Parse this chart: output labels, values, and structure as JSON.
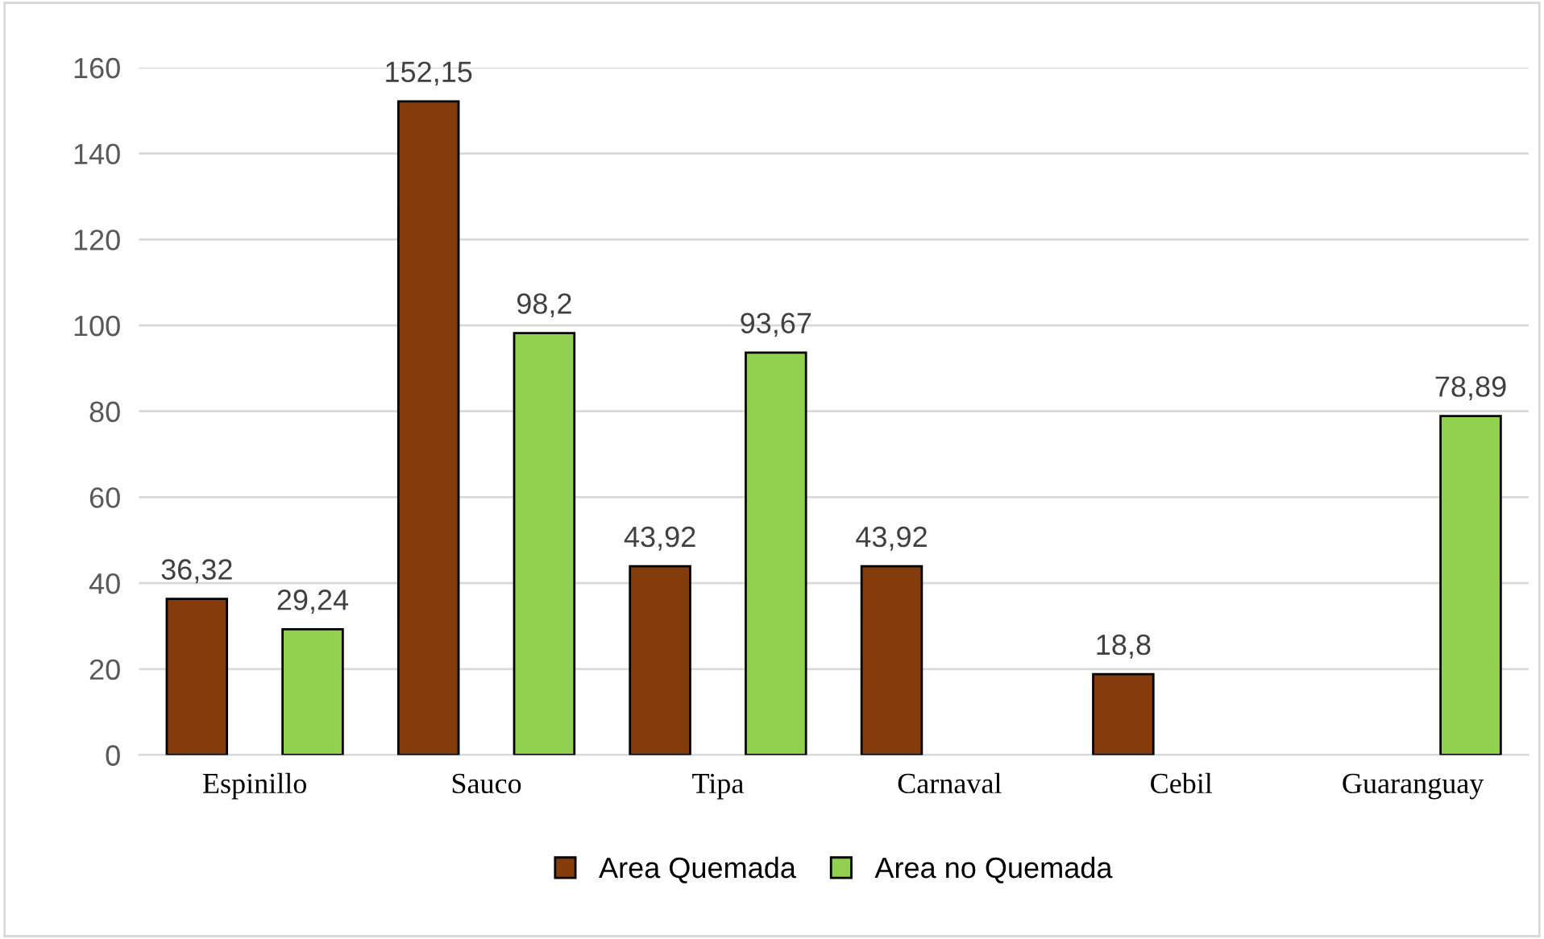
{
  "chart_data": {
    "type": "bar",
    "categories": [
      "Espinillo",
      "Sauco",
      "Tipa",
      "Carnaval",
      "Cebil",
      "Guaranguay"
    ],
    "series": [
      {
        "name": "Area Quemada",
        "color": "#843c0c",
        "values": [
          36.32,
          152.15,
          43.92,
          43.92,
          18.8,
          null
        ],
        "value_labels": [
          "36,32",
          "152,15",
          "43,92",
          "43,92",
          "18,8",
          null
        ]
      },
      {
        "name": "Area no Quemada",
        "color": "#92d050",
        "values": [
          29.24,
          98.2,
          93.67,
          null,
          null,
          78.89
        ],
        "value_labels": [
          "29,24",
          "98,2",
          "93,67",
          null,
          null,
          "78,89"
        ]
      }
    ],
    "ylim": [
      0,
      160
    ],
    "yticks": [
      0,
      20,
      40,
      60,
      80,
      100,
      120,
      140,
      160
    ],
    "grid": "y",
    "legend": "bottom"
  }
}
